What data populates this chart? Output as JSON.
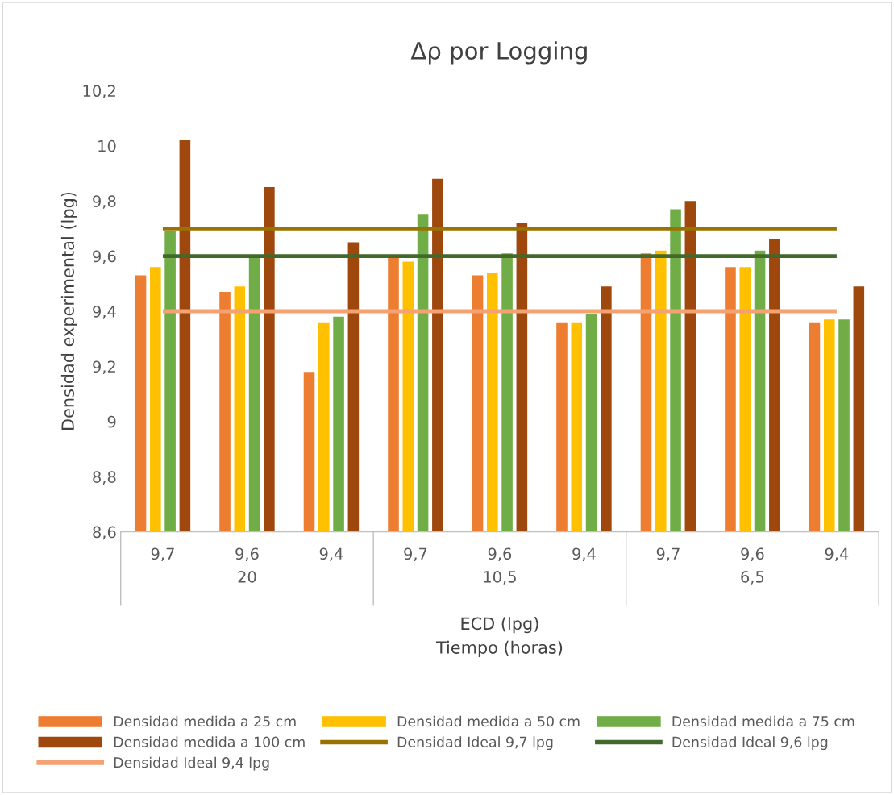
{
  "chart_data": {
    "type": "bar",
    "title": "Δρ por Logging",
    "xlabel": "ECD (lpg)\nTiempo (horas)",
    "ylabel": "Densidad experimental (lpg)",
    "categories": [
      "9,7",
      "9,6",
      "9,4",
      "9,7",
      "9,6",
      "9,4",
      "9,7",
      "9,6",
      "9,4"
    ],
    "annotations": [
      "20",
      "10,5",
      "6,5"
    ],
    "series": [
      {
        "name": "Densidad medida a 25 cm",
        "color": "#ed7d31",
        "values": [
          9.53,
          9.47,
          9.18,
          9.6,
          9.53,
          9.36,
          9.61,
          9.56,
          9.36
        ]
      },
      {
        "name": "Densidad medida a 50 cm",
        "color": "#ffc000",
        "values": [
          9.56,
          9.49,
          9.36,
          9.58,
          9.54,
          9.36,
          9.62,
          9.56,
          9.37
        ]
      },
      {
        "name": "Densidad medida a 75 cm",
        "color": "#70ad47",
        "values": [
          9.69,
          9.6,
          9.38,
          9.75,
          9.61,
          9.39,
          9.77,
          9.62,
          9.37
        ]
      },
      {
        "name": "Densidad medida a 100 cm",
        "color": "#9e480e",
        "values": [
          10.02,
          9.85,
          9.65,
          9.88,
          9.72,
          9.49,
          9.8,
          9.66,
          9.49
        ]
      },
      {
        "name": "Densidad Ideal 9,7 lpg",
        "type": "line",
        "color": "#997300",
        "values": [
          9.7,
          9.7,
          9.7,
          9.7,
          9.7,
          9.7,
          9.7,
          9.7,
          9.7
        ]
      },
      {
        "name": "Densidad Ideal 9,6 lpg",
        "type": "line",
        "color": "#43682b",
        "values": [
          9.6,
          9.6,
          9.6,
          9.6,
          9.6,
          9.6,
          9.6,
          9.6,
          9.6
        ]
      },
      {
        "name": "Densidad Ideal 9,4 lpg",
        "type": "line",
        "color": "#f4a272",
        "values": [
          9.4,
          9.4,
          9.4,
          9.4,
          9.4,
          9.4,
          9.4,
          9.4,
          9.4
        ]
      }
    ],
    "ylim": [
      8.6,
      10.2
    ],
    "yticks": [
      {
        "value": 8.6,
        "label": "8,6"
      },
      {
        "value": 8.8,
        "label": "8,8"
      },
      9,
      {
        "value": 9.2,
        "label": "9,2"
      },
      {
        "value": 9.4,
        "label": "9,4"
      },
      {
        "value": 9.6,
        "label": "9,6"
      },
      {
        "value": 9.8,
        "label": "9,8"
      },
      10,
      {
        "value": 10.2,
        "label": "10,2"
      }
    ],
    "grid": false,
    "legend": "bottom"
  }
}
